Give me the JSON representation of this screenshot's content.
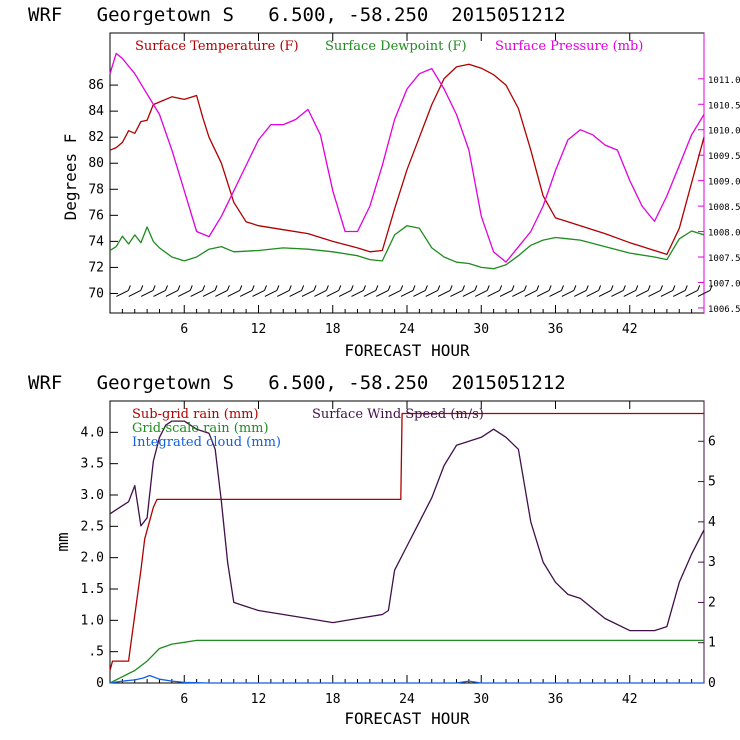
{
  "chart_data": [
    {
      "type": "line",
      "title": "WRF   Georgetown S   6.500, -58.250  2015051212",
      "xlabel": "FORECAST HOUR",
      "ylabel": "Degrees F",
      "xlim": [
        0,
        48
      ],
      "ylim": [
        68.5,
        90
      ],
      "xticks": [
        "6",
        "12",
        "18",
        "24",
        "30",
        "36",
        "42"
      ],
      "yticks": [
        "70",
        "72",
        "74",
        "76",
        "78",
        "80",
        "82",
        "84",
        "86"
      ],
      "y2lim": [
        1006.4,
        1011.9
      ],
      "y2ticks": [
        "1006.5",
        "1007.0",
        "1007.5",
        "1008.0",
        "1008.5",
        "1009.0",
        "1009.5",
        "1010.0",
        "1010.5",
        "1011.0"
      ],
      "legend_position": "top",
      "series": [
        {
          "name": "Surface Temperature (F)",
          "color": "#b00000",
          "axis": "left",
          "x": [
            0,
            0.5,
            1,
            1.5,
            2,
            2.5,
            3,
            3.5,
            4,
            5,
            6,
            7,
            7.5,
            8,
            9,
            10,
            11,
            12,
            14,
            16,
            18,
            20,
            21,
            22,
            23,
            24,
            25,
            26,
            27,
            28,
            29,
            30,
            31,
            32,
            33,
            34,
            35,
            36,
            37,
            38,
            40,
            42,
            44,
            45,
            46,
            47,
            48
          ],
          "y": [
            81,
            81.2,
            81.6,
            82.5,
            82.3,
            83.2,
            83.3,
            84.5,
            84.7,
            85.1,
            84.9,
            85.2,
            83.5,
            82,
            80,
            77,
            75.5,
            75.2,
            74.9,
            74.6,
            74,
            73.5,
            73.2,
            73.3,
            76.5,
            79.5,
            82,
            84.5,
            86.5,
            87.4,
            87.6,
            87.3,
            86.8,
            86,
            84.2,
            81,
            77.5,
            75.8,
            75.5,
            75.2,
            74.6,
            73.9,
            73.3,
            73,
            75,
            78.5,
            82
          ]
        },
        {
          "name": "Surface Dewpoint (F)",
          "color": "#1e8c1e",
          "axis": "left",
          "x": [
            0,
            0.5,
            1,
            1.5,
            2,
            2.5,
            3,
            3.5,
            4,
            5,
            6,
            7,
            8,
            9,
            10,
            12,
            14,
            16,
            18,
            20,
            21,
            22,
            23,
            24,
            25,
            26,
            27,
            28,
            29,
            30,
            31,
            32,
            33,
            34,
            35,
            36,
            37,
            38,
            40,
            42,
            44,
            45,
            46,
            47,
            48
          ],
          "y": [
            73.3,
            73.6,
            74.4,
            73.8,
            74.5,
            73.9,
            75.1,
            74,
            73.5,
            72.8,
            72.5,
            72.8,
            73.4,
            73.6,
            73.2,
            73.3,
            73.5,
            73.4,
            73.2,
            72.9,
            72.6,
            72.5,
            74.5,
            75.2,
            75,
            73.5,
            72.8,
            72.4,
            72.3,
            72,
            71.9,
            72.2,
            72.9,
            73.7,
            74.1,
            74.3,
            74.2,
            74.1,
            73.6,
            73.1,
            72.8,
            72.6,
            74.2,
            74.8,
            74.5
          ]
        },
        {
          "name": "Surface Pressure (mb)",
          "color": "#e000e0",
          "axis": "right",
          "x": [
            0,
            0.5,
            1,
            2,
            3,
            4,
            5,
            6,
            7,
            8,
            9,
            10,
            11,
            12,
            13,
            14,
            15,
            16,
            17,
            18,
            19,
            20,
            21,
            22,
            23,
            24,
            25,
            26,
            27,
            28,
            29,
            30,
            31,
            32,
            33,
            34,
            35,
            36,
            37,
            38,
            39,
            40,
            41,
            42,
            43,
            44,
            45,
            46,
            47,
            48
          ],
          "y": [
            1011.1,
            1011.5,
            1011.4,
            1011.1,
            1010.7,
            1010.3,
            1009.6,
            1008.8,
            1008.0,
            1007.9,
            1008.3,
            1008.8,
            1009.3,
            1009.8,
            1010.1,
            1010.1,
            1010.2,
            1010.4,
            1009.9,
            1008.8,
            1008.0,
            1008.0,
            1008.5,
            1009.3,
            1010.2,
            1010.8,
            1011.1,
            1011.2,
            1010.8,
            1010.3,
            1009.6,
            1008.3,
            1007.6,
            1007.4,
            1007.7,
            1008.0,
            1008.5,
            1009.2,
            1009.8,
            1010.0,
            1009.9,
            1009.7,
            1009.6,
            1009.0,
            1008.5,
            1008.2,
            1008.7,
            1009.3,
            1009.9,
            1010.3
          ]
        }
      ],
      "wind_barbs": {
        "y": 70,
        "x_start": 1,
        "x_end": 48,
        "step": 1
      }
    },
    {
      "type": "line",
      "title": "WRF   Georgetown S   6.500, -58.250  2015051212",
      "xlabel": "FORECAST HOUR",
      "ylabel": "mm",
      "xlim": [
        0,
        48
      ],
      "ylim": [
        0,
        4.5
      ],
      "xticks": [
        "6",
        "12",
        "18",
        "24",
        "30",
        "36",
        "42"
      ],
      "yticks": [
        "0",
        ".5",
        "1.0",
        "1.5",
        "2.0",
        "2.5",
        "3.0",
        "3.5",
        "4.0"
      ],
      "y2lim": [
        0,
        7
      ],
      "y2ticks": [
        "0",
        "1",
        "2",
        "3",
        "4",
        "5",
        "6"
      ],
      "legend_position": "top-left",
      "series": [
        {
          "name": "Sub-grid rain (mm)",
          "color": "#b00000",
          "axis": "left",
          "x": [
            0,
            0.2,
            1.5,
            1.6,
            2.5,
            2.8,
            3.5,
            3.8,
            23.5,
            23.6,
            48
          ],
          "y": [
            0.2,
            0.35,
            0.35,
            0.5,
            1.8,
            2.3,
            2.8,
            2.93,
            2.93,
            4.3,
            4.3
          ]
        },
        {
          "name": "Grid-scale rain (mm)",
          "color": "#1e8c1e",
          "axis": "left",
          "x": [
            0,
            1,
            2,
            3,
            3.5,
            4,
            5,
            6,
            7,
            48
          ],
          "y": [
            0,
            0.1,
            0.2,
            0.35,
            0.45,
            0.55,
            0.62,
            0.65,
            0.68,
            0.68
          ]
        },
        {
          "name": "Integrated cloud (mm)",
          "color": "#1060e0",
          "axis": "left",
          "x": [
            0,
            1,
            2,
            2.7,
            3.2,
            4,
            5,
            6,
            8,
            20,
            28,
            29,
            30,
            48
          ],
          "y": [
            0,
            0.03,
            0.05,
            0.08,
            0.12,
            0.06,
            0.03,
            0.01,
            0,
            0,
            0,
            0.03,
            0,
            0
          ]
        },
        {
          "name": "Surface Wind Speed (m/s)",
          "color": "#40104a",
          "axis": "right",
          "x": [
            0,
            1,
            1.5,
            2,
            2.5,
            3,
            3.5,
            4,
            4.5,
            5,
            6,
            7,
            8,
            8.5,
            9,
            9.5,
            10,
            11,
            12,
            14,
            16,
            18,
            20,
            22,
            22.5,
            23,
            24,
            25,
            26,
            27,
            28,
            29,
            30,
            31,
            32,
            33,
            34,
            35,
            36,
            37,
            38,
            40,
            42,
            44,
            45,
            46,
            47,
            48
          ],
          "y": [
            4.2,
            4.4,
            4.5,
            4.9,
            3.9,
            4.1,
            5.5,
            6.1,
            6.4,
            6.5,
            6.5,
            6.3,
            6.2,
            5.8,
            4.5,
            3.0,
            2.0,
            1.9,
            1.8,
            1.7,
            1.6,
            1.5,
            1.6,
            1.7,
            1.8,
            2.8,
            3.4,
            4.0,
            4.6,
            5.4,
            5.9,
            6.0,
            6.1,
            6.3,
            6.1,
            5.8,
            4.0,
            3.0,
            2.5,
            2.2,
            2.1,
            1.6,
            1.3,
            1.3,
            1.4,
            2.5,
            3.2,
            3.8
          ]
        }
      ]
    }
  ]
}
